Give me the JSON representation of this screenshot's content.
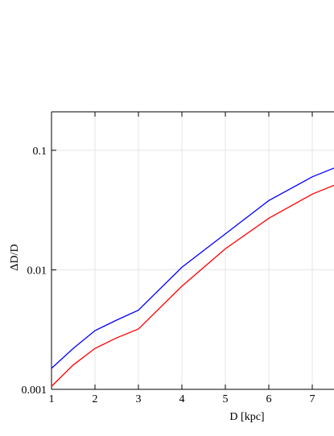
{
  "chart_data": {
    "type": "line",
    "x_label": "D [kpc]",
    "y_label": "ΔD/D",
    "x": [
      1,
      1.5,
      2,
      2.5,
      3,
      4,
      5,
      6,
      7,
      7.5
    ],
    "series": [
      {
        "color": "#0000ff",
        "values": [
          0.0015,
          0.0022,
          0.0031,
          0.0038,
          0.0046,
          0.0105,
          0.02,
          0.038,
          0.06,
          0.071
        ]
      },
      {
        "color": "#ff0000",
        "values": [
          0.00106,
          0.0016,
          0.0022,
          0.0027,
          0.0032,
          0.0073,
          0.015,
          0.027,
          0.043,
          0.051
        ]
      }
    ],
    "xlim": [
      1,
      7.5
    ],
    "xticks": [
      1,
      2,
      3,
      4,
      5,
      6,
      7
    ],
    "ylim": [
      0.001,
      0.21
    ],
    "yticks": [
      0.001,
      0.01,
      0.1
    ],
    "log_y": true,
    "grid": true
  }
}
